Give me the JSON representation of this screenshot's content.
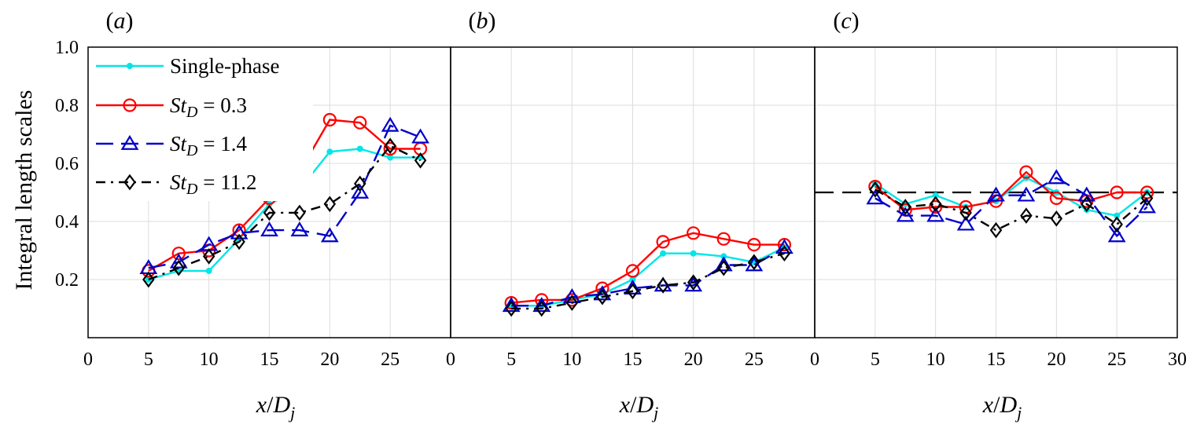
{
  "chart_data": [
    {
      "type": "line",
      "panel_label": "(a)",
      "xlabel": "x/Dj",
      "ylabel": "Integral length scales",
      "xlim": [
        0,
        30
      ],
      "ylim": [
        0,
        1.0
      ],
      "xticks": [
        "0",
        "5",
        "10",
        "15",
        "20",
        "25"
      ],
      "yticks": [
        "0.2",
        "0.4",
        "0.6",
        "0.8",
        "1.0"
      ],
      "grid": true,
      "legend": "top-left",
      "x": [
        5,
        7.5,
        10,
        12.5,
        15,
        17.5,
        20,
        22.5,
        25,
        27.5
      ],
      "series": [
        {
          "name": "Single-phase",
          "color": "#00e6e6",
          "marker": "dot",
          "dash": "solid",
          "values": [
            0.2,
            0.23,
            0.23,
            0.34,
            0.46,
            0.51,
            0.64,
            0.65,
            0.62,
            0.62
          ]
        },
        {
          "name": "St_D = 0.3",
          "color": "#ff0000",
          "marker": "circle",
          "dash": "solid",
          "values": [
            0.23,
            0.29,
            0.3,
            0.37,
            0.48,
            0.57,
            0.75,
            0.74,
            0.65,
            0.65
          ]
        },
        {
          "name": "St_D = 1.4",
          "color": "#0000cc",
          "marker": "triangle",
          "dash": "dashed",
          "values": [
            0.24,
            0.26,
            0.32,
            0.36,
            0.37,
            0.37,
            0.35,
            0.5,
            0.73,
            0.69
          ]
        },
        {
          "name": "St_D = 11.2",
          "color": "#000000",
          "marker": "diamond",
          "dash": "dashdot",
          "values": [
            0.2,
            0.24,
            0.28,
            0.33,
            0.43,
            0.43,
            0.46,
            0.53,
            0.66,
            0.61
          ]
        }
      ]
    },
    {
      "type": "line",
      "panel_label": "(b)",
      "xlabel": "x/Dj",
      "xlim": [
        0,
        30
      ],
      "ylim": [
        0,
        1.0
      ],
      "xticks": [
        "0",
        "5",
        "10",
        "15",
        "20",
        "25"
      ],
      "grid": true,
      "x": [
        5,
        7.5,
        10,
        12.5,
        15,
        17.5,
        20,
        22.5,
        25,
        27.5
      ],
      "series": [
        {
          "name": "Single-phase",
          "color": "#00e6e6",
          "marker": "dot",
          "dash": "solid",
          "values": [
            0.11,
            0.11,
            0.13,
            0.15,
            0.2,
            0.29,
            0.29,
            0.28,
            0.26,
            0.31
          ]
        },
        {
          "name": "St_D = 0.3",
          "color": "#ff0000",
          "marker": "circle",
          "dash": "solid",
          "values": [
            0.12,
            0.13,
            0.13,
            0.17,
            0.23,
            0.33,
            0.36,
            0.34,
            0.32,
            0.32
          ]
        },
        {
          "name": "St_D = 1.4",
          "color": "#0000cc",
          "marker": "triangle",
          "dash": "dashed",
          "values": [
            0.11,
            0.11,
            0.14,
            0.15,
            0.17,
            0.18,
            0.18,
            0.25,
            0.25,
            0.31
          ]
        },
        {
          "name": "St_D = 11.2",
          "color": "#000000",
          "marker": "diamond",
          "dash": "dashdot",
          "values": [
            0.1,
            0.1,
            0.12,
            0.14,
            0.16,
            0.18,
            0.19,
            0.24,
            0.26,
            0.29
          ]
        }
      ]
    },
    {
      "type": "line",
      "panel_label": "(c)",
      "xlabel": "x/Dj",
      "xlim": [
        0,
        30
      ],
      "ylim": [
        0,
        1.0
      ],
      "xticks": [
        "0",
        "5",
        "10",
        "15",
        "20",
        "25",
        "30"
      ],
      "grid": true,
      "reference_line": 0.5,
      "x": [
        5,
        7.5,
        10,
        12.5,
        15,
        17.5,
        20,
        22.5,
        25,
        27.5
      ],
      "series": [
        {
          "name": "Single-phase",
          "color": "#00e6e6",
          "marker": "dot",
          "dash": "solid",
          "values": [
            0.53,
            0.46,
            0.49,
            0.45,
            0.47,
            0.55,
            0.5,
            0.44,
            0.42,
            0.5
          ]
        },
        {
          "name": "St_D = 0.3",
          "color": "#ff0000",
          "marker": "circle",
          "dash": "solid",
          "values": [
            0.52,
            0.44,
            0.45,
            0.45,
            0.47,
            0.57,
            0.48,
            0.47,
            0.5,
            0.5
          ]
        },
        {
          "name": "St_D = 1.4",
          "color": "#0000cc",
          "marker": "triangle",
          "dash": "dashed",
          "values": [
            0.48,
            0.42,
            0.42,
            0.39,
            0.49,
            0.49,
            0.55,
            0.49,
            0.35,
            0.45
          ]
        },
        {
          "name": "St_D = 11.2",
          "color": "#000000",
          "marker": "diamond",
          "dash": "dashdot",
          "values": [
            0.51,
            0.45,
            0.46,
            0.43,
            0.37,
            0.42,
            0.41,
            0.46,
            0.39,
            0.48
          ]
        }
      ]
    }
  ]
}
